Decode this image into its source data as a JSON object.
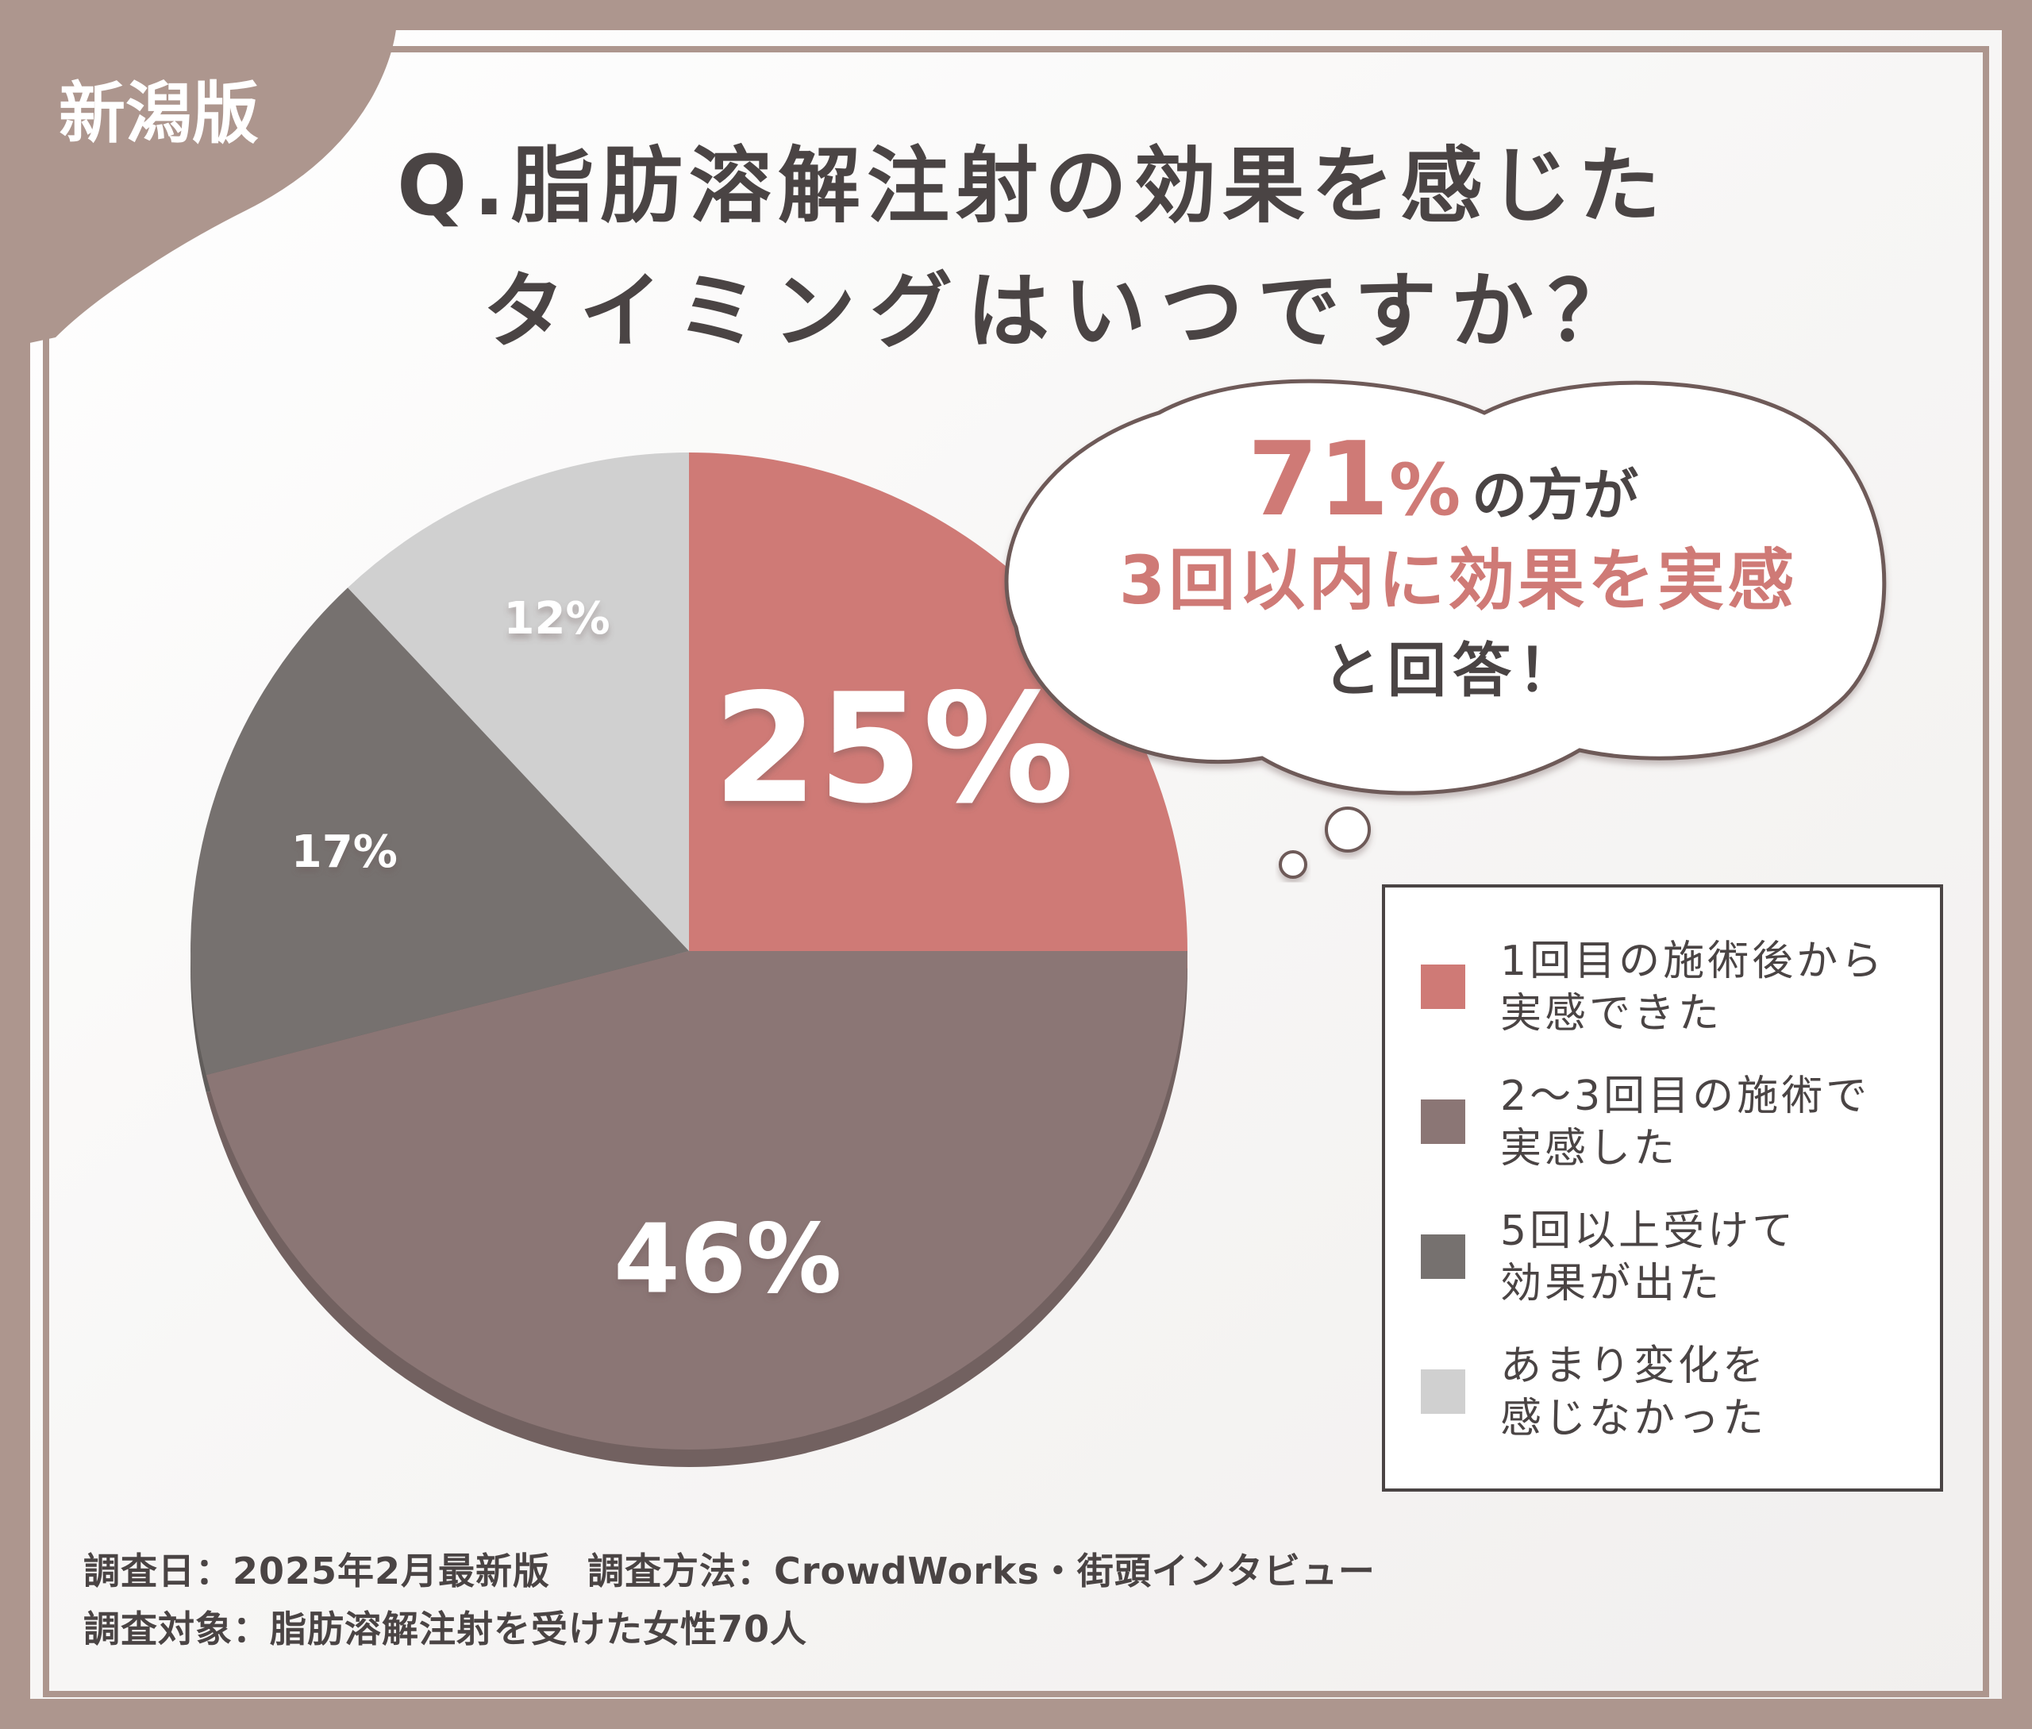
{
  "badge": "新潟版",
  "title": {
    "line1": "Q.脂肪溶解注射の効果を感じた",
    "line2": "タイミングはいつですか？"
  },
  "bubble": {
    "highlight_number": "71",
    "highlight_unit": "%",
    "line1_rest": "の方が",
    "line2": "3回以内に効果を実感",
    "line3": "と回答！"
  },
  "colors": {
    "background_frame": "#ad968e",
    "accent": "#cf7a76",
    "text_dark": "#4a4444"
  },
  "chart_data": {
    "type": "pie",
    "start": "12 o'clock, clockwise",
    "slices": [
      {
        "label": "1回目の施術後から実感できた",
        "legend_lines": [
          "1回目の施術後から",
          "実感できた"
        ],
        "value": 25,
        "display": "25%",
        "color": "#cf7a76"
      },
      {
        "label": "2～3回目の施術で実感した",
        "legend_lines": [
          "2～3回目の施術で",
          "実感した"
        ],
        "value": 46,
        "display": "46%",
        "color": "#8b7675"
      },
      {
        "label": "5回以上受けて効果が出た",
        "legend_lines": [
          "5回以上受けて",
          "効果が出た"
        ],
        "value": 17,
        "display": "17%",
        "color": "#76716f"
      },
      {
        "label": "あまり変化を感じなかった",
        "legend_lines": [
          "あまり変化を",
          "感じなかった"
        ],
        "value": 12,
        "display": "12%",
        "color": "#d0d0d0"
      }
    ],
    "legend_position": "right"
  },
  "footer": {
    "line1": "調査日：2025年2月最新版　調査方法：CrowdWorks・街頭インタビュー",
    "line2": "調査対象：脂肪溶解注射を受けた女性70人"
  }
}
